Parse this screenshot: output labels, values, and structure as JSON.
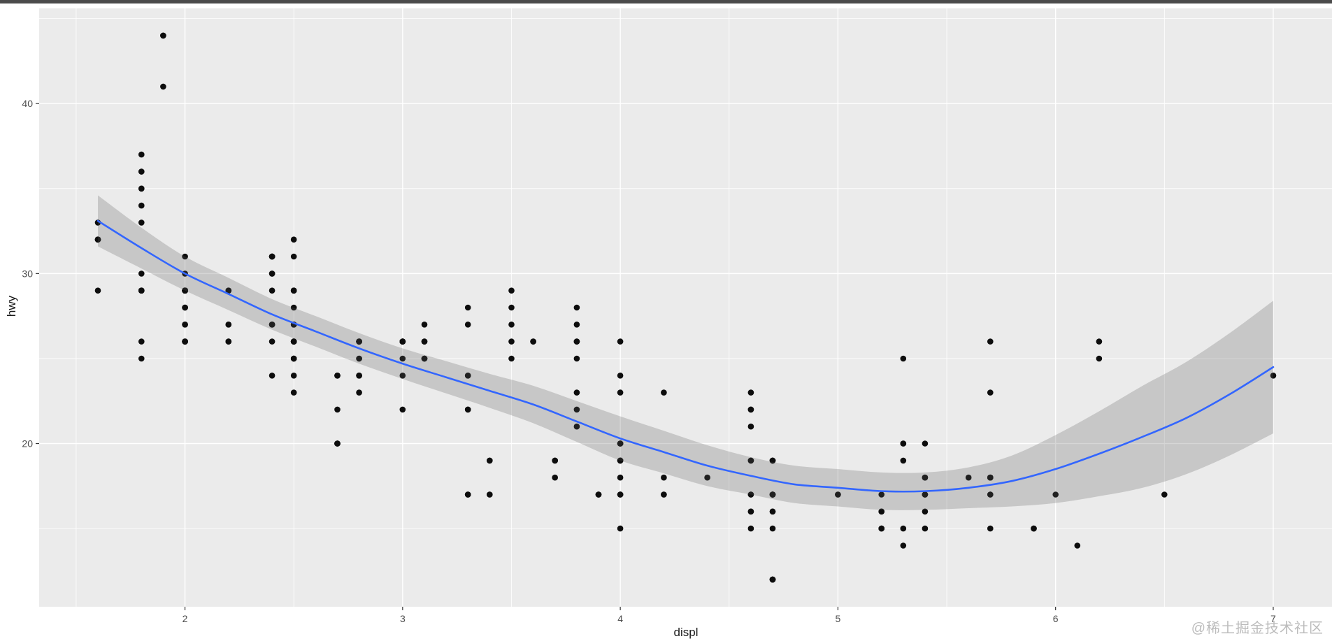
{
  "window": {
    "top_bar_color": "#4b4b4b"
  },
  "watermark": {
    "text": "@稀土掘金技术社区",
    "color": "#bcbcbc"
  },
  "chart_data": {
    "type": "scatter",
    "title": "",
    "xlabel": "displ",
    "ylabel": "hwy",
    "xlim": [
      1.33,
      7.27
    ],
    "ylim": [
      10.4,
      45.6
    ],
    "x_ticks": [
      2,
      3,
      4,
      5,
      6,
      7
    ],
    "x_tick_labels": [
      "2",
      "3",
      "4",
      "5",
      "6",
      "7"
    ],
    "y_ticks": [
      20,
      30,
      40
    ],
    "y_tick_labels": [
      "20",
      "30",
      "40"
    ],
    "x_minor": [
      1.5,
      2.5,
      3.5,
      4.5,
      5.5,
      6.5
    ],
    "y_minor": [
      15,
      25,
      35,
      45
    ],
    "grid": "on",
    "legend": "none",
    "points": {
      "displ": [
        1.8,
        1.8,
        2,
        2,
        2.8,
        2.8,
        3.1,
        1.8,
        1.8,
        2,
        2,
        2.8,
        2.8,
        3.1,
        3.1,
        2.8,
        3.1,
        4.2,
        5.3,
        5.3,
        5.3,
        5.7,
        6,
        5.7,
        5.7,
        6.2,
        6.2,
        7,
        5.3,
        5.3,
        5.7,
        6.5,
        2.4,
        2.4,
        3.1,
        3.5,
        3.6,
        2.4,
        3,
        3.3,
        3.3,
        3.3,
        3.3,
        3.3,
        3.8,
        3.8,
        3.8,
        4,
        3.7,
        3.7,
        3.9,
        3.9,
        4.7,
        4.7,
        4.7,
        5.2,
        5.2,
        3.9,
        4.7,
        4.7,
        4.7,
        5.2,
        5.7,
        5.9,
        4.7,
        4.7,
        4.7,
        4.7,
        4.7,
        4.7,
        5.2,
        5.2,
        5.7,
        5.9,
        4.6,
        5.4,
        5.4,
        4,
        4,
        4,
        4,
        4.6,
        5,
        4.2,
        4.2,
        4.6,
        4.6,
        4.6,
        5.4,
        5.4,
        3.8,
        3.8,
        4,
        4,
        4.6,
        4.6,
        4.6,
        4.6,
        5.4,
        1.6,
        1.6,
        1.6,
        1.6,
        1.6,
        1.8,
        1.8,
        1.8,
        2,
        2.4,
        2.4,
        2.4,
        2.4,
        2.5,
        2.5,
        3.3,
        2,
        2,
        2,
        2,
        2.7,
        2.7,
        2.7,
        3,
        3.7,
        4,
        4.7,
        4.7,
        4.7,
        5.7,
        6.1,
        4,
        4.2,
        4.4,
        4.6,
        5.4,
        5.4,
        5.4,
        4,
        4,
        4.6,
        5,
        2.4,
        2.4,
        2.5,
        2.5,
        3.5,
        3.5,
        3,
        3,
        3.5,
        3.3,
        3.3,
        4,
        5.6,
        3.1,
        3.8,
        3.8,
        3.8,
        5.3,
        2.5,
        2.5,
        2.5,
        2.5,
        2.5,
        2.5,
        2.2,
        2.2,
        2.5,
        2.5,
        2.5,
        2.5,
        2.5,
        2.5,
        2.7,
        2.7,
        3.4,
        3.4,
        4,
        4.7,
        2.2,
        2.2,
        2.4,
        2.4,
        3,
        3,
        3.5,
        2.2,
        2.2,
        2.4,
        2.4,
        3,
        3,
        3.3,
        1.8,
        1.8,
        1.8,
        1.8,
        1.8,
        4.7,
        5.7,
        2.7,
        2.7,
        2.7,
        3.4,
        3.4,
        4,
        4,
        2,
        2,
        2,
        2,
        2.8,
        1.9,
        2,
        2,
        2,
        2,
        2.5,
        2.5,
        2.8,
        2.8,
        1.9,
        1.9,
        2,
        2,
        2.5,
        2.5,
        1.8,
        1.8,
        2,
        2,
        2.8,
        2.8,
        3.6
      ],
      "hwy": [
        29,
        29,
        31,
        30,
        26,
        26,
        27,
        26,
        25,
        28,
        27,
        25,
        25,
        25,
        25,
        24,
        25,
        23,
        20,
        15,
        20,
        17,
        17,
        26,
        23,
        26,
        25,
        24,
        19,
        14,
        15,
        17,
        27,
        30,
        26,
        29,
        26,
        24,
        24,
        22,
        22,
        24,
        24,
        17,
        22,
        21,
        23,
        23,
        19,
        18,
        17,
        17,
        19,
        19,
        12,
        17,
        15,
        17,
        17,
        12,
        17,
        16,
        18,
        15,
        16,
        12,
        17,
        17,
        16,
        12,
        15,
        16,
        17,
        15,
        17,
        17,
        18,
        17,
        19,
        17,
        19,
        19,
        17,
        17,
        17,
        16,
        16,
        17,
        15,
        17,
        26,
        25,
        26,
        24,
        21,
        22,
        23,
        22,
        20,
        33,
        32,
        32,
        29,
        32,
        34,
        36,
        36,
        29,
        26,
        27,
        30,
        31,
        26,
        26,
        28,
        26,
        29,
        28,
        27,
        24,
        24,
        24,
        22,
        19,
        20,
        17,
        12,
        19,
        18,
        14,
        15,
        18,
        18,
        15,
        17,
        16,
        18,
        17,
        19,
        19,
        17,
        29,
        27,
        31,
        32,
        27,
        26,
        26,
        25,
        25,
        17,
        17,
        20,
        18,
        26,
        26,
        27,
        28,
        25,
        25,
        24,
        27,
        25,
        26,
        23,
        26,
        26,
        26,
        26,
        25,
        27,
        25,
        27,
        20,
        20,
        19,
        17,
        20,
        17,
        29,
        27,
        31,
        31,
        26,
        26,
        28,
        27,
        29,
        31,
        31,
        26,
        26,
        27,
        30,
        33,
        35,
        37,
        35,
        15,
        18,
        20,
        20,
        22,
        17,
        19,
        18,
        20,
        29,
        26,
        29,
        29,
        24,
        44,
        29,
        26,
        29,
        29,
        29,
        29,
        23,
        24,
        44,
        41,
        29,
        26,
        28,
        29,
        29,
        29,
        28,
        29,
        26,
        26,
        26
      ]
    },
    "smooth": {
      "method": "loess",
      "x": [
        1.6,
        1.8,
        2.0,
        2.2,
        2.4,
        2.6,
        2.8,
        3.0,
        3.2,
        3.4,
        3.6,
        3.8,
        4.0,
        4.2,
        4.4,
        4.6,
        4.8,
        5.0,
        5.2,
        5.4,
        5.6,
        5.8,
        6.0,
        6.2,
        6.4,
        6.6,
        6.8,
        7.0
      ],
      "fit": [
        33.1,
        31.5,
        30.0,
        28.8,
        27.6,
        26.6,
        25.6,
        24.7,
        23.9,
        23.1,
        22.3,
        21.3,
        20.3,
        19.5,
        18.7,
        18.1,
        17.6,
        17.4,
        17.2,
        17.2,
        17.4,
        17.8,
        18.5,
        19.4,
        20.4,
        21.5,
        22.9,
        24.5
      ],
      "upper": [
        34.6,
        32.7,
        31.0,
        29.75,
        28.5,
        27.5,
        26.5,
        25.6,
        24.85,
        24.1,
        23.4,
        22.5,
        21.6,
        20.75,
        19.9,
        19.2,
        18.7,
        18.5,
        18.3,
        18.3,
        18.6,
        19.3,
        20.5,
        21.9,
        23.4,
        24.8,
        26.5,
        28.4
      ],
      "lower": [
        31.6,
        30.3,
        29.0,
        27.85,
        26.7,
        25.7,
        24.7,
        23.8,
        22.95,
        22.1,
        21.2,
        20.1,
        19.0,
        18.25,
        17.5,
        17.0,
        16.5,
        16.3,
        16.1,
        16.1,
        16.2,
        16.3,
        16.5,
        16.9,
        17.4,
        18.2,
        19.3,
        20.6
      ]
    },
    "colors": {
      "panel_bg": "#ebebeb",
      "grid": "#ffffff",
      "point": "#0d0d0d",
      "line": "#3366ff",
      "ribbon": "rgba(92,92,92,0.25)",
      "tick_mark": "#333333",
      "axis_text": "#4d4d4d",
      "axis_title": "#1a1a1a"
    }
  }
}
